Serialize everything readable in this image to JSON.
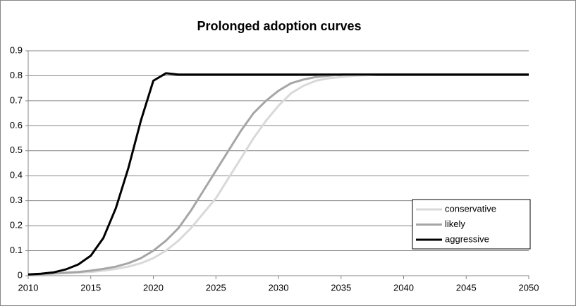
{
  "chart_data": {
    "type": "line",
    "title": "Prolonged adoption curves",
    "x": [
      2010,
      2011,
      2012,
      2013,
      2014,
      2015,
      2016,
      2017,
      2018,
      2019,
      2020,
      2021,
      2022,
      2023,
      2024,
      2025,
      2026,
      2027,
      2028,
      2029,
      2030,
      2031,
      2032,
      2033,
      2034,
      2035,
      2036,
      2037,
      2038,
      2039,
      2040,
      2041,
      2042,
      2043,
      2044,
      2045,
      2046,
      2047,
      2048,
      2049,
      2050
    ],
    "series": [
      {
        "name": "conservative",
        "color": "#d9d9d9",
        "values": [
          0.005,
          0.006,
          0.008,
          0.01,
          0.012,
          0.015,
          0.02,
          0.027,
          0.036,
          0.05,
          0.07,
          0.1,
          0.14,
          0.19,
          0.25,
          0.31,
          0.39,
          0.47,
          0.55,
          0.62,
          0.68,
          0.73,
          0.76,
          0.78,
          0.79,
          0.795,
          0.8,
          0.802,
          0.805,
          0.805,
          0.805,
          0.805,
          0.805,
          0.805,
          0.805,
          0.805,
          0.805,
          0.805,
          0.805,
          0.805,
          0.805
        ]
      },
      {
        "name": "likely",
        "color": "#a6a6a6",
        "values": [
          0.005,
          0.007,
          0.009,
          0.012,
          0.015,
          0.02,
          0.027,
          0.036,
          0.05,
          0.07,
          0.1,
          0.14,
          0.19,
          0.26,
          0.34,
          0.42,
          0.5,
          0.58,
          0.65,
          0.7,
          0.74,
          0.77,
          0.785,
          0.795,
          0.8,
          0.805,
          0.805,
          0.805,
          0.805,
          0.805,
          0.805,
          0.805,
          0.805,
          0.805,
          0.805,
          0.805,
          0.805,
          0.805,
          0.805,
          0.805,
          0.805
        ]
      },
      {
        "name": "aggressive",
        "color": "#000000",
        "values": [
          0.005,
          0.008,
          0.013,
          0.025,
          0.045,
          0.08,
          0.15,
          0.27,
          0.43,
          0.62,
          0.78,
          0.81,
          0.805,
          0.805,
          0.805,
          0.805,
          0.805,
          0.805,
          0.805,
          0.805,
          0.805,
          0.805,
          0.805,
          0.805,
          0.805,
          0.805,
          0.805,
          0.805,
          0.805,
          0.805,
          0.805,
          0.805,
          0.805,
          0.805,
          0.805,
          0.805,
          0.805,
          0.805,
          0.805,
          0.805,
          0.805
        ]
      }
    ],
    "xlim": [
      2010,
      2050
    ],
    "xticks": [
      2010,
      2015,
      2020,
      2025,
      2030,
      2035,
      2040,
      2045,
      2050
    ],
    "ylim": [
      0,
      0.9
    ],
    "yticks": [
      0,
      0.1,
      0.2,
      0.3,
      0.4,
      0.5,
      0.6,
      0.7,
      0.8,
      0.9
    ],
    "grid": true,
    "legend": "right"
  }
}
